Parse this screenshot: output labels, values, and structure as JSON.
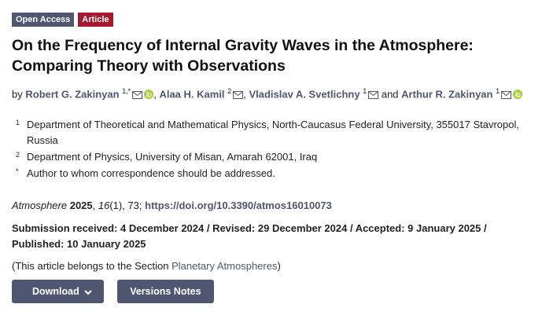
{
  "badges": [
    "Open Access",
    "Article"
  ],
  "title": "On the Frequency of Internal Gravity Waves in the Atmosphere: Comparing Theory with Observations",
  "authors": {
    "prefix": "by",
    "list": [
      {
        "name": "Robert G. Zakinyan",
        "sup": "1,*",
        "separator": ","
      },
      {
        "name": "Alaa H. Kamil",
        "sup": "2",
        "separator": ","
      },
      {
        "name": "Vladislav A. Svetlichny",
        "sup": "1",
        "separator": "and"
      },
      {
        "name": "Arthur R. Zakinyan",
        "sup": "1"
      }
    ]
  },
  "affiliations": [
    {
      "marker": "1",
      "text": "Department of Theoretical and Mathematical Physics, North-Caucasus Federal University, 355017 Stavropol, Russia"
    },
    {
      "marker": "2",
      "text": "Department of Physics, University of Misan, Amarah 62001, Iraq"
    },
    {
      "marker": "*",
      "text": "Author to whom correspondence should be addressed."
    }
  ],
  "citation": {
    "journal": "Atmosphere",
    "year": "2025",
    "volume": "16",
    "rest": "(1), 73;",
    "doi": "https://doi.org/10.3390/atmos16010073"
  },
  "dates": "Submission received: 4 December 2024 / Revised: 29 December 2024 / Accepted: 9 January 2025 / Published: 10 January 2025",
  "section": {
    "prefix": "(This article belongs to the Section",
    "name": "Planetary Atmospheres",
    "suffix": ")"
  },
  "buttons": [
    "Download",
    "Versions Notes"
  ]
}
